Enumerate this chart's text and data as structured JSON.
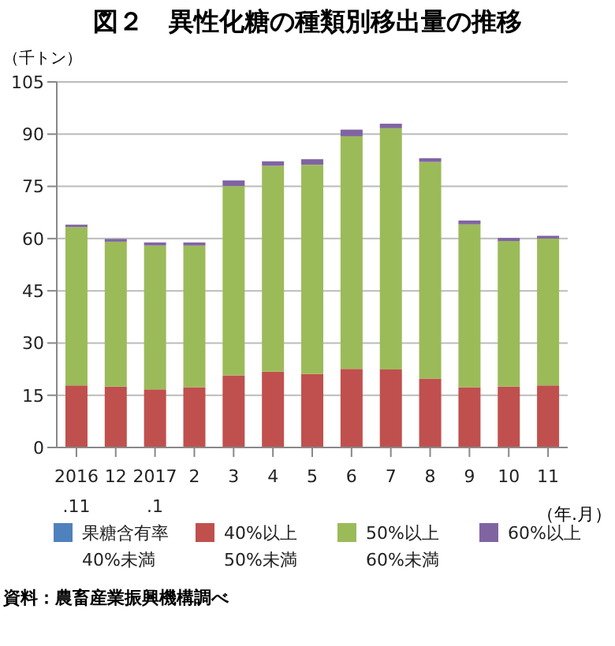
{
  "chart_data": {
    "type": "bar",
    "title": "図２　異性化糖の種類別移出量の推移",
    "ylabel": "（千トン）",
    "xlabel": "（年.月）",
    "categories": [
      "2016\n.11",
      "12",
      "2017\n.1",
      "2",
      "3",
      "4",
      "5",
      "6",
      "7",
      "8",
      "9",
      "10",
      "11"
    ],
    "stacked": true,
    "series": [
      {
        "name": "果糖含有率\n40%未満",
        "color": "#4f81bd",
        "values": [
          0,
          0,
          0,
          0,
          0,
          0,
          0,
          0,
          0,
          0,
          0,
          0,
          0
        ]
      },
      {
        "name": "40%以上\n50%未満",
        "color": "#c0504d",
        "values": [
          17.8,
          17.5,
          16.7,
          17.3,
          20.7,
          21.8,
          21.1,
          22.6,
          22.4,
          19.8,
          17.3,
          17.5,
          17.8
        ]
      },
      {
        "name": "50%以上\n60%未満",
        "color": "#9bbb59",
        "values": [
          45.5,
          41.6,
          41.3,
          40.7,
          54.4,
          59.1,
          60.1,
          66.8,
          69.3,
          62.2,
          46.8,
          41.8,
          42.2
        ]
      },
      {
        "name": "60%以上",
        "color": "#8064a2",
        "values": [
          0.7,
          0.8,
          0.9,
          0.9,
          1.6,
          1.3,
          1.6,
          1.9,
          1.3,
          1.1,
          1.1,
          0.9,
          0.8
        ]
      }
    ],
    "ylim": [
      0,
      105
    ],
    "yticks": [
      0,
      15,
      30,
      45,
      60,
      75,
      90,
      105
    ],
    "grid": "y",
    "legend": "bottom",
    "annotations": [
      "資料：農畜産業振興機構調べ"
    ]
  }
}
